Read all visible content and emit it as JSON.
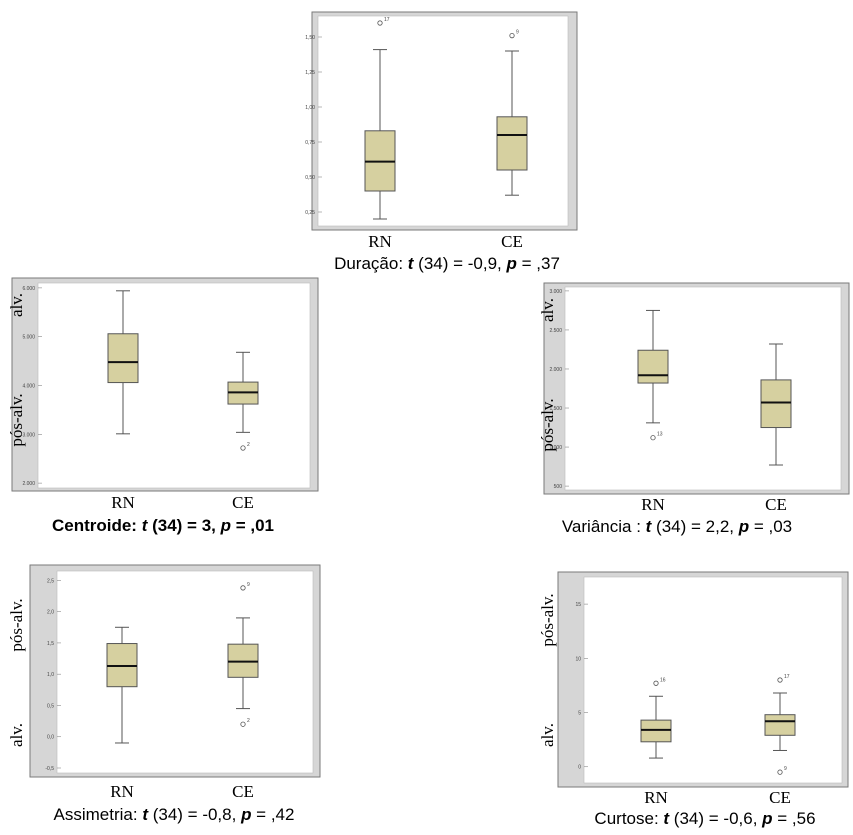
{
  "colors": {
    "box_fill": "#d6d0a0",
    "box_stroke": "#555555",
    "frame": "#d6d6d6",
    "frame_stroke": "#7a7a7a",
    "text": "#000000"
  },
  "chart_data": [
    {
      "type": "box",
      "categories": [
        "RN",
        "CE"
      ],
      "ylim": [
        0.15,
        1.65
      ],
      "yticks": [
        0.25,
        0.5,
        0.75,
        1.0,
        1.25,
        1.5
      ],
      "ytick_labels": [
        "0,25",
        "0,50",
        "0,75",
        "1,00",
        "1,25",
        "1,50"
      ],
      "side_label_top": "",
      "side_label_bottom": "",
      "caption": {
        "prefix": "Duração: ",
        "t": "t",
        "mid": " (34) = -0,9, ",
        "p": "p",
        "suffix": " = ,37",
        "bold": false
      },
      "boxes": [
        {
          "min": 0.2,
          "q1": 0.4,
          "median": 0.61,
          "q3": 0.83,
          "max": 1.41,
          "outliers": [
            {
              "value": 1.6,
              "label": "17"
            }
          ]
        },
        {
          "min": 0.37,
          "q1": 0.55,
          "median": 0.8,
          "q3": 0.93,
          "max": 1.4,
          "outliers": [
            {
              "value": 1.51,
              "label": "9"
            }
          ]
        }
      ]
    },
    {
      "type": "box",
      "categories": [
        "RN",
        "CE"
      ],
      "ylim": [
        1900,
        6100
      ],
      "yticks": [
        2000,
        3000,
        4000,
        5000,
        6000
      ],
      "ytick_labels": [
        "2.000",
        "3.000",
        "4.000",
        "5.000",
        "6.000"
      ],
      "side_label_top": "alv.",
      "side_label_bottom": "pós-alv.",
      "caption": {
        "prefix": "Centroide: ",
        "t": "t",
        "mid": " (34) = 3, ",
        "p": "p",
        "suffix": " = ,01",
        "bold": true
      },
      "boxes": [
        {
          "min": 3010,
          "q1": 4060,
          "median": 4480,
          "q3": 5060,
          "max": 5940,
          "outliers": []
        },
        {
          "min": 3040,
          "q1": 3620,
          "median": 3860,
          "q3": 4070,
          "max": 4680,
          "outliers": [
            {
              "value": 2720,
              "label": "2"
            }
          ]
        }
      ]
    },
    {
      "type": "box",
      "categories": [
        "RN",
        "CE"
      ],
      "ylim": [
        450,
        3050
      ],
      "yticks": [
        500,
        1000,
        1500,
        2000,
        2500,
        3000
      ],
      "ytick_labels": [
        "500",
        "1.000",
        "1.500",
        "2.000",
        "2.500",
        "3.000"
      ],
      "side_label_top": "alv.",
      "side_label_bottom": "pós-alv.",
      "caption": {
        "prefix": "Variância : ",
        "t": "t",
        "mid": " (34) = 2,2, ",
        "p": "p",
        "suffix": " = ,03",
        "bold": false
      },
      "boxes": [
        {
          "min": 1310,
          "q1": 1820,
          "median": 1920,
          "q3": 2240,
          "max": 2750,
          "outliers": [
            {
              "value": 1120,
              "label": "13"
            }
          ]
        },
        {
          "min": 770,
          "q1": 1250,
          "median": 1570,
          "q3": 1860,
          "max": 2320,
          "outliers": []
        }
      ]
    },
    {
      "type": "box",
      "categories": [
        "RN",
        "CE"
      ],
      "ylim": [
        -0.58,
        2.65
      ],
      "yticks": [
        -0.5,
        0.0,
        0.5,
        1.0,
        1.5,
        2.0,
        2.5
      ],
      "ytick_labels": [
        "-0,5",
        "0,0",
        "0,5",
        "1,0",
        "1,5",
        "2,0",
        "2,5"
      ],
      "side_label_top": "pós-alv.",
      "side_label_bottom": "alv.",
      "caption": {
        "prefix": "Assimetria: ",
        "t": "t",
        "mid": " (34) = -0,8, ",
        "p": "p",
        "suffix": " = ,42",
        "bold": false
      },
      "boxes": [
        {
          "min": -0.1,
          "q1": 0.8,
          "median": 1.13,
          "q3": 1.49,
          "max": 1.75,
          "outliers": []
        },
        {
          "min": 0.45,
          "q1": 0.95,
          "median": 1.2,
          "q3": 1.48,
          "max": 1.9,
          "outliers": [
            {
              "value": 0.2,
              "label": "2"
            },
            {
              "value": 2.38,
              "label": "9"
            }
          ]
        }
      ]
    },
    {
      "type": "box",
      "categories": [
        "RN",
        "CE"
      ],
      "ylim": [
        -1.5,
        17.5
      ],
      "yticks": [
        0,
        5,
        10,
        15
      ],
      "ytick_labels": [
        "0",
        "5",
        "10",
        "15"
      ],
      "side_label_top": "pós-alv.",
      "side_label_bottom": "alv.",
      "caption": {
        "prefix": "Curtose: ",
        "t": "t",
        "mid": " (34) = -0,6, ",
        "p": "p",
        "suffix": " = ,56",
        "bold": false
      },
      "boxes": [
        {
          "min": 0.8,
          "q1": 2.3,
          "median": 3.4,
          "q3": 4.3,
          "max": 6.5,
          "outliers": [
            {
              "value": 7.7,
              "label": "16"
            }
          ]
        },
        {
          "min": 1.5,
          "q1": 2.9,
          "median": 4.2,
          "q3": 4.8,
          "max": 6.8,
          "outliers": [
            {
              "value": -0.5,
              "label": "9"
            },
            {
              "value": 8.0,
              "label": "17"
            }
          ]
        }
      ]
    }
  ]
}
